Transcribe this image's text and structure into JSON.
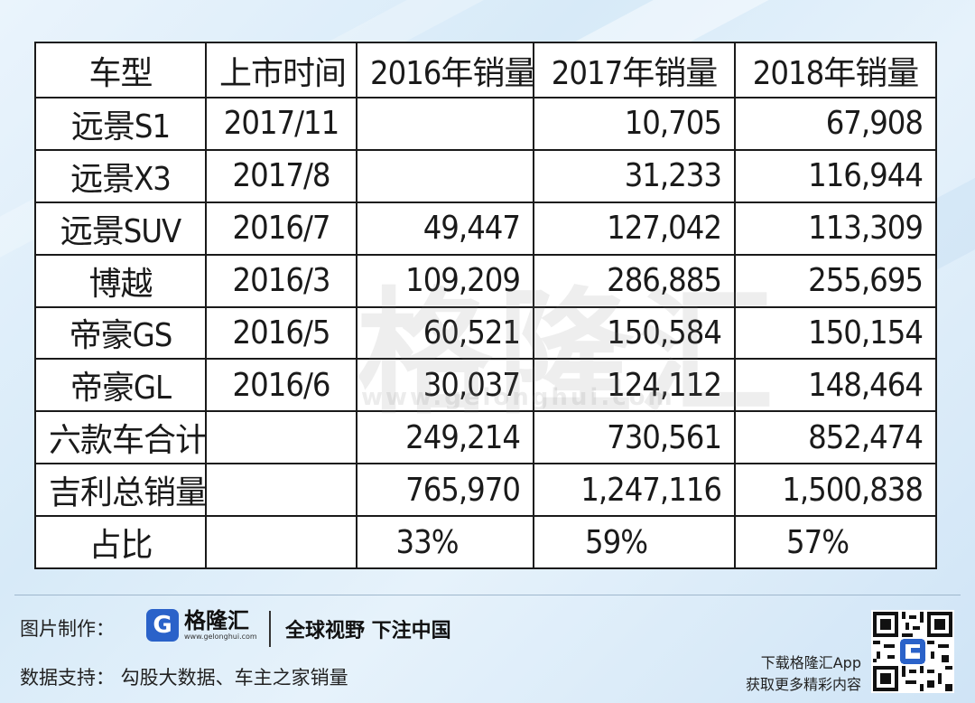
{
  "table": {
    "headers": [
      "车型",
      "上市时间",
      "2016年销量",
      "2017年销量",
      "2018年销量"
    ],
    "rows": [
      [
        "远景S1",
        "2017/11",
        "",
        "10,705",
        "67,908"
      ],
      [
        "远景X3",
        "2017/8",
        "",
        "31,233",
        "116,944"
      ],
      [
        "远景SUV",
        "2016/7",
        "49,447",
        "127,042",
        "113,309"
      ],
      [
        "博越",
        "2016/3",
        "109,209",
        "286,885",
        "255,695"
      ],
      [
        "帝豪GS",
        "2016/5",
        "60,521",
        "150,584",
        "150,154"
      ],
      [
        "帝豪GL",
        "2016/6",
        "30,037",
        "124,112",
        "148,464"
      ],
      [
        "六款车合计",
        "",
        "249,214",
        "730,561",
        "852,474"
      ],
      [
        "吉利总销量",
        "",
        "765,970",
        "1,247,116",
        "1,500,838"
      ],
      [
        "占比",
        "",
        "33%",
        "59%",
        "57%"
      ]
    ]
  },
  "watermark": {
    "text": "格隆汇",
    "url": "www.gelonghui.com"
  },
  "footer": {
    "credit_label": "图片制作：",
    "logo_letter": "G",
    "logo_name": "格隆汇",
    "logo_url": "www.gelonghui.com",
    "slogan": "全球视野 下注中国",
    "source_label": "数据支持：  勾股大数据、车主之家销量",
    "app_line1": "下载格隆汇App",
    "app_line2": "获取更多精彩内容",
    "brand_color": "#2a62c9"
  }
}
